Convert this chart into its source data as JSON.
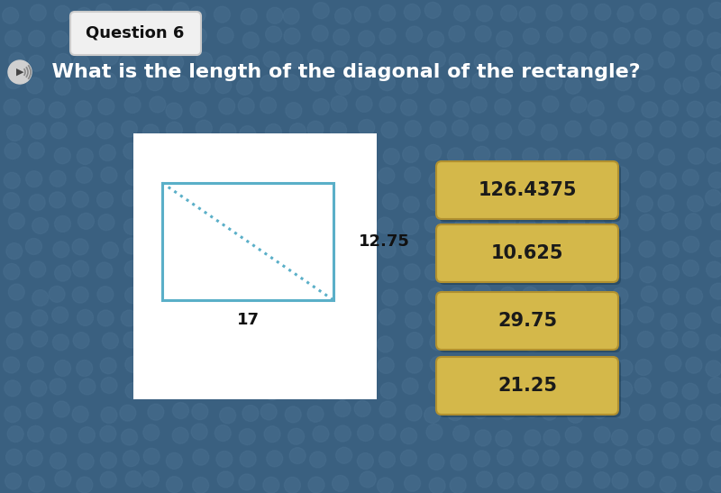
{
  "title": "Question 6",
  "question": "  What is the length of the diagonal of the rectangle?",
  "bg_color": "#3a6080",
  "rect_label_w": "17",
  "rect_label_h": "12.75",
  "answer_options": [
    "126.4375",
    "10.625",
    "29.75",
    "21.25"
  ],
  "answer_btn_color": "#d4b84a",
  "answer_btn_edge": "#b09030",
  "title_box_color": "#f0f0f0",
  "title_box_edge": "#cccccc",
  "rect_stroke_color": "#5aafc8",
  "diagonal_color": "#5aafc8",
  "white_panel_color": "#ffffff",
  "dot_color": "#4a7595",
  "question_color": "#ffffff"
}
